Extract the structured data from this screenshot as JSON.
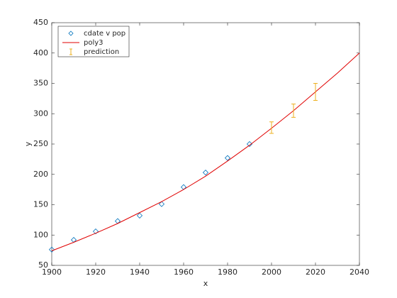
{
  "chart_data": {
    "type": "line",
    "xlabel": "x",
    "ylabel": "y",
    "xlim": [
      1900,
      2040
    ],
    "xticks": [
      1900,
      1920,
      1940,
      1960,
      1980,
      2000,
      2020,
      2040
    ],
    "ylim": [
      50,
      450
    ],
    "yticks": [
      50,
      100,
      150,
      200,
      250,
      300,
      350,
      400,
      450
    ],
    "legend": "top-left",
    "series": [
      {
        "name": "cdate v pop",
        "style": "markers",
        "color": "#0072bd",
        "x": [
          1900,
          1910,
          1920,
          1930,
          1940,
          1950,
          1960,
          1970,
          1980,
          1990
        ],
        "values": [
          76,
          92,
          106,
          123,
          132,
          151,
          179,
          203,
          227,
          250
        ]
      },
      {
        "name": "poly3",
        "style": "line",
        "color": "#e00000",
        "x": [
          1900,
          1910,
          1920,
          1930,
          1940,
          1950,
          1960,
          1970,
          1980,
          1990,
          2000,
          2010,
          2020,
          2030,
          2040
        ],
        "values": [
          74,
          88,
          103,
          119,
          137,
          155,
          175,
          197,
          222,
          248,
          276,
          305,
          336,
          367,
          400
        ]
      },
      {
        "name": "prediction",
        "style": "errorbar",
        "color": "#edb120",
        "x": [
          2000,
          2010,
          2020
        ],
        "values": [
          277,
          305,
          336
        ],
        "errors": [
          9.5,
          11,
          14
        ]
      }
    ]
  }
}
